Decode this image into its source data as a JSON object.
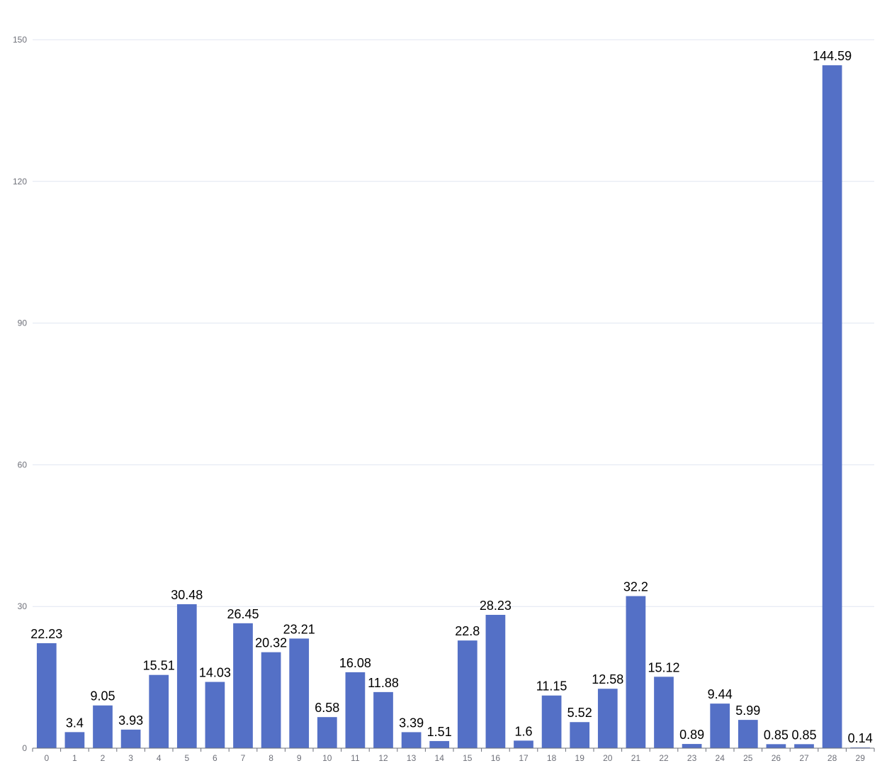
{
  "chart_data": {
    "type": "bar",
    "title": "",
    "xlabel": "",
    "ylabel": "",
    "categories": [
      "0",
      "1",
      "2",
      "3",
      "4",
      "5",
      "6",
      "7",
      "8",
      "9",
      "10",
      "11",
      "12",
      "13",
      "14",
      "15",
      "16",
      "17",
      "18",
      "19",
      "20",
      "21",
      "22",
      "23",
      "24",
      "25",
      "26",
      "27",
      "28",
      "29"
    ],
    "values": [
      22.23,
      3.4,
      9.05,
      3.93,
      15.51,
      30.48,
      14.03,
      26.45,
      20.32,
      23.21,
      6.58,
      16.08,
      11.88,
      3.39,
      1.51,
      22.8,
      28.23,
      1.6,
      11.15,
      5.52,
      12.58,
      32.2,
      15.12,
      0.89,
      9.44,
      5.99,
      0.85,
      0.85,
      144.59,
      0.14
    ],
    "data_labels": [
      "22.23",
      "3.4",
      "9.05",
      "3.93",
      "15.51",
      "30.48",
      "14.03",
      "26.45",
      "20.32",
      "23.21",
      "6.58",
      "16.08",
      "11.88",
      "3.39",
      "1.51",
      "22.8",
      "28.23",
      "1.6",
      "11.15",
      "5.52",
      "12.58",
      "32.2",
      "15.12",
      "0.89",
      "9.44",
      "5.99",
      "0.85",
      "0.85",
      "144.59",
      "0.14"
    ],
    "ylim": [
      0,
      150
    ],
    "yticks": [
      0,
      30,
      60,
      90,
      120,
      150
    ],
    "grid": true,
    "legend": "none",
    "bar_color": "#5470c6",
    "grid_color": "#e0e6f1",
    "axis_color": "#6e7079",
    "tick_label_color": "#6e7079",
    "data_label_color": "#000000"
  }
}
